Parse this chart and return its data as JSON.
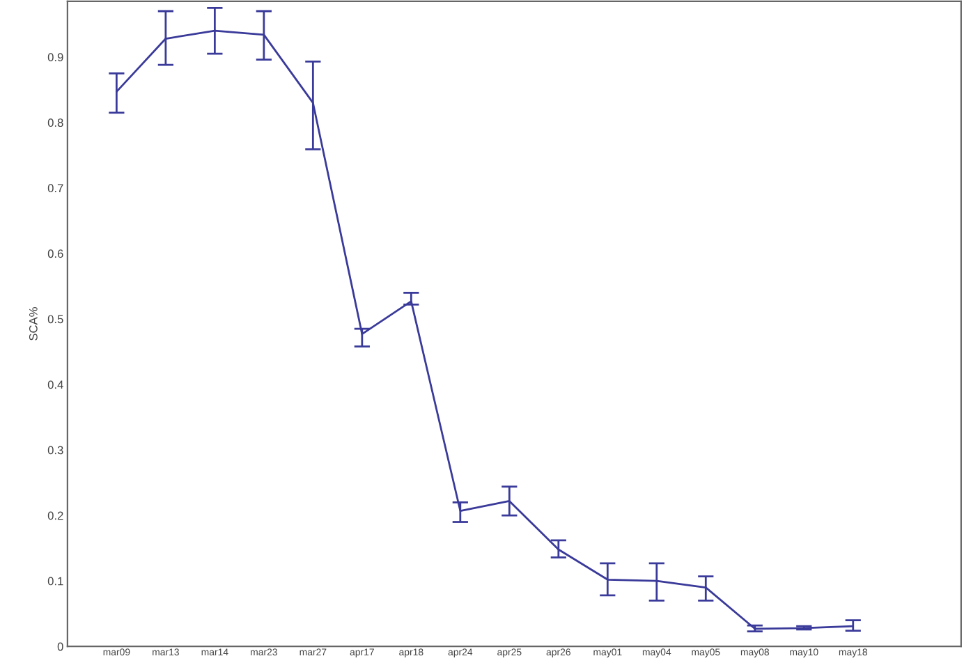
{
  "chart_data": {
    "type": "line",
    "ylabel": "SCA%",
    "categories": [
      "mar09",
      "mar13",
      "mar14",
      "mar23",
      "mar27",
      "apr17",
      "apr18",
      "apr24",
      "apr25",
      "apr26",
      "may01",
      "may04",
      "may05",
      "may08",
      "may10",
      "may18"
    ],
    "series": [
      {
        "color": "#3a3a9a",
        "values": [
          0.847,
          0.928,
          0.94,
          0.934,
          0.83,
          0.477,
          0.527,
          0.207,
          0.222,
          0.148,
          0.102,
          0.1,
          0.09,
          0.027,
          0.028,
          0.031
        ],
        "errors": [
          [
            0.815,
            0.875
          ],
          [
            0.888,
            0.97
          ],
          [
            0.905,
            0.975
          ],
          [
            0.896,
            0.97
          ],
          [
            0.759,
            0.893
          ],
          [
            0.458,
            0.485
          ],
          [
            0.522,
            0.54
          ],
          [
            0.19,
            0.22
          ],
          [
            0.2,
            0.244
          ],
          [
            0.136,
            0.162
          ],
          [
            0.078,
            0.127
          ],
          [
            0.07,
            0.127
          ],
          [
            0.07,
            0.107
          ],
          [
            0.023,
            0.032
          ],
          [
            0.026,
            0.031
          ],
          [
            0.024,
            0.04
          ]
        ]
      }
    ],
    "ylim": [
      0,
      0.985
    ],
    "yticks": [
      0,
      0.1,
      0.2,
      0.3,
      0.4,
      0.5,
      0.6,
      0.7,
      0.8,
      0.9
    ],
    "grid": false,
    "marker": "none",
    "line_style": "solid"
  }
}
